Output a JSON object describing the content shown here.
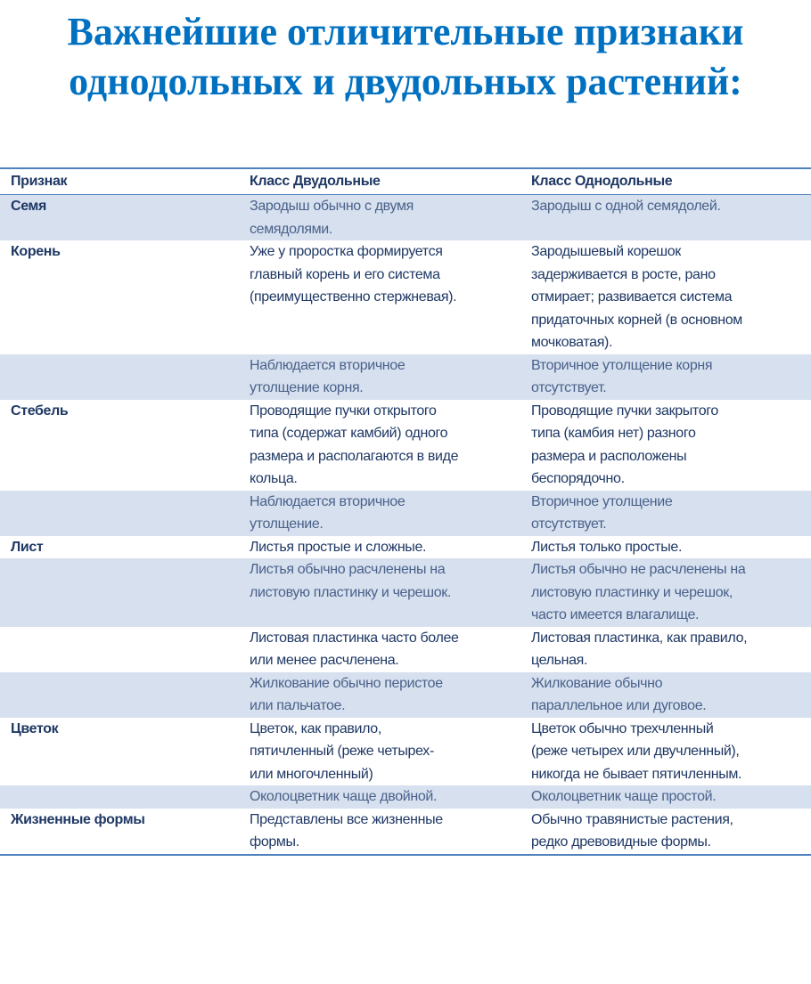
{
  "title": "Важнейшие отличительные признаки\nоднодольных и двудольных растений:",
  "table": {
    "headers": [
      "Признак",
      "Класс Двудольные",
      "Класс Однодольные"
    ],
    "rows": [
      {
        "feature": "Семя",
        "dicot": "Зародыш обычно с двумя\nсемядолями.",
        "monocot": "Зародыш с одной семядолей.",
        "shaded": true
      },
      {
        "feature": "Корень",
        "dicot": "Уже у проростка формируется\nглавный корень и его система\n(преимущественно стержневая).",
        "monocot": "Зародышевый корешок\nзадерживается в росте, рано\nотмирает; развивается система\nпридаточных корней (в основном\nмочковатая).",
        "shaded": false
      },
      {
        "feature": "",
        "dicot": "Наблюдается вторичное\nутолщение корня.",
        "monocot": "Вторичное утолщение корня\nотсутствует.",
        "shaded": true
      },
      {
        "feature": "Стебель",
        "dicot": "Проводящие пучки открытого\nтипа (содержат камбий) одного\nразмера и располагаются в виде\nкольца.",
        "monocot": "Проводящие пучки закрытого\nтипа (камбия нет) разного\nразмера и расположены\nбеспорядочно.",
        "shaded": false
      },
      {
        "feature": "",
        "dicot": "Наблюдается вторичное\nутолщение.",
        "monocot": "Вторичное утолщение\nотсутствует.",
        "shaded": true
      },
      {
        "feature": "Лист",
        "dicot": "Листья простые и сложные.",
        "monocot": "Листья только простые.",
        "shaded": false
      },
      {
        "feature": "",
        "dicot": "Листья обычно расчленены на\nлистовую пластинку и черешок.",
        "monocot": "Листья обычно не расчленены на\nлистовую пластинку и черешок,\nчасто имеется влагалище.",
        "shaded": true
      },
      {
        "feature": "",
        "dicot": "Листовая пластинка часто более\nили менее расчленена.",
        "monocot": "Листовая пластинка, как правило,\nцельная.",
        "shaded": false
      },
      {
        "feature": "",
        "dicot": "Жилкование обычно перистое\nили пальчатое.",
        "monocot": "Жилкование обычно\nпараллельное или дуговое.",
        "shaded": true
      },
      {
        "feature": "Цветок",
        "dicot": "Цветок, как правило,\nпятичленный (реже четырех-\nили многочленный)",
        "monocot": "Цветок обычно трехчленный\n(реже четырех или двучленный),\nникогда не бывает пятичленным.",
        "shaded": false
      },
      {
        "feature": "",
        "dicot": "Околоцветник чаще двойной.",
        "monocot": "Околоцветник чаще простой.",
        "shaded": true
      },
      {
        "feature": "Жизненные формы",
        "dicot": "Представлены все жизненные\nформы.",
        "monocot": "Обычно травянистые растения,\nредко древовидные формы.",
        "shaded": false
      }
    ]
  }
}
